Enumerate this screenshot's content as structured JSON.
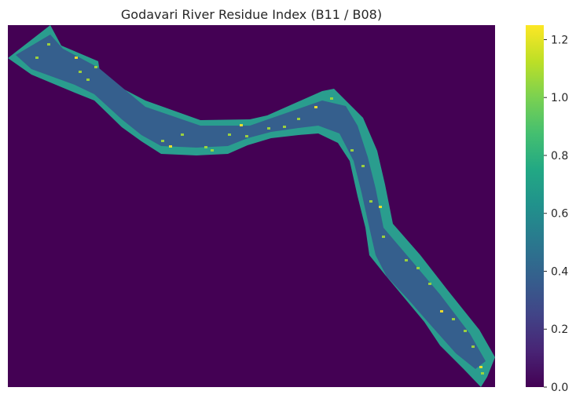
{
  "chart_data": {
    "type": "heatmap",
    "title": "Godavari River Residue Index (B11 / B08)",
    "xlabel": "",
    "ylabel": "",
    "x_ticks": [],
    "y_ticks": [],
    "grid": false,
    "colormap": "viridis",
    "colorbar": {
      "range": [
        0,
        1.25
      ],
      "ticks": [
        0.0,
        0.2,
        0.4,
        0.6,
        0.8,
        1.0,
        1.2
      ],
      "tick_labels": [
        "0.0",
        "0.2",
        "0.4",
        "0.6",
        "0.8",
        "1.0",
        "1.2"
      ],
      "position": "right"
    },
    "background_value": 0.0,
    "river_value_center": 0.42,
    "river_value_banks": 0.65,
    "river_value_hotspots": 1.0,
    "colors": {
      "background": "#440154",
      "channel": "#355f8d",
      "bank": "#2a9d8e",
      "hotspot": "#a5db36",
      "peak": "#fde725"
    }
  }
}
